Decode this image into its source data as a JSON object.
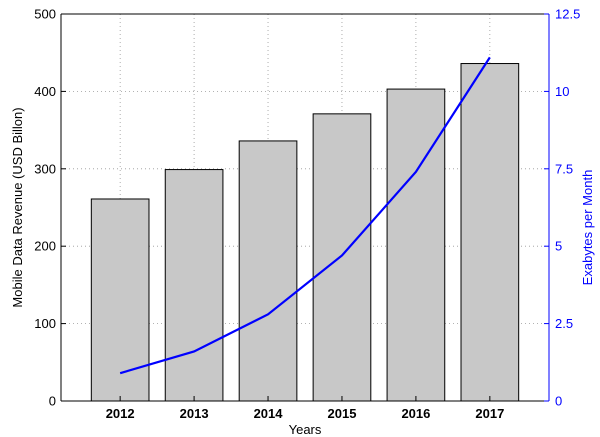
{
  "chart_data": {
    "type": "bar",
    "categories": [
      "2012",
      "2013",
      "2014",
      "2015",
      "2016",
      "2017"
    ],
    "series": [
      {
        "type": "bar",
        "axis": "left",
        "values": [
          261,
          299,
          336,
          371,
          403,
          436
        ],
        "color": "#c8c8c8"
      },
      {
        "type": "line",
        "axis": "right",
        "values": [
          0.9,
          1.6,
          2.8,
          4.7,
          7.4,
          11.1
        ],
        "color": "#0000ff"
      }
    ],
    "xlabel": "Years",
    "ylabel": "Mobile Data Revenue (USD Billon)",
    "y2label": "Exabytes per Month",
    "ylim": [
      0,
      500
    ],
    "y2lim": [
      0,
      12.5
    ],
    "yticks": [
      0,
      100,
      200,
      300,
      400,
      500
    ],
    "y2ticks": [
      "0",
      "2.5",
      "5",
      "7.5",
      "10",
      "12.5"
    ],
    "grid": true,
    "right_axis_color": "#0000ff"
  }
}
